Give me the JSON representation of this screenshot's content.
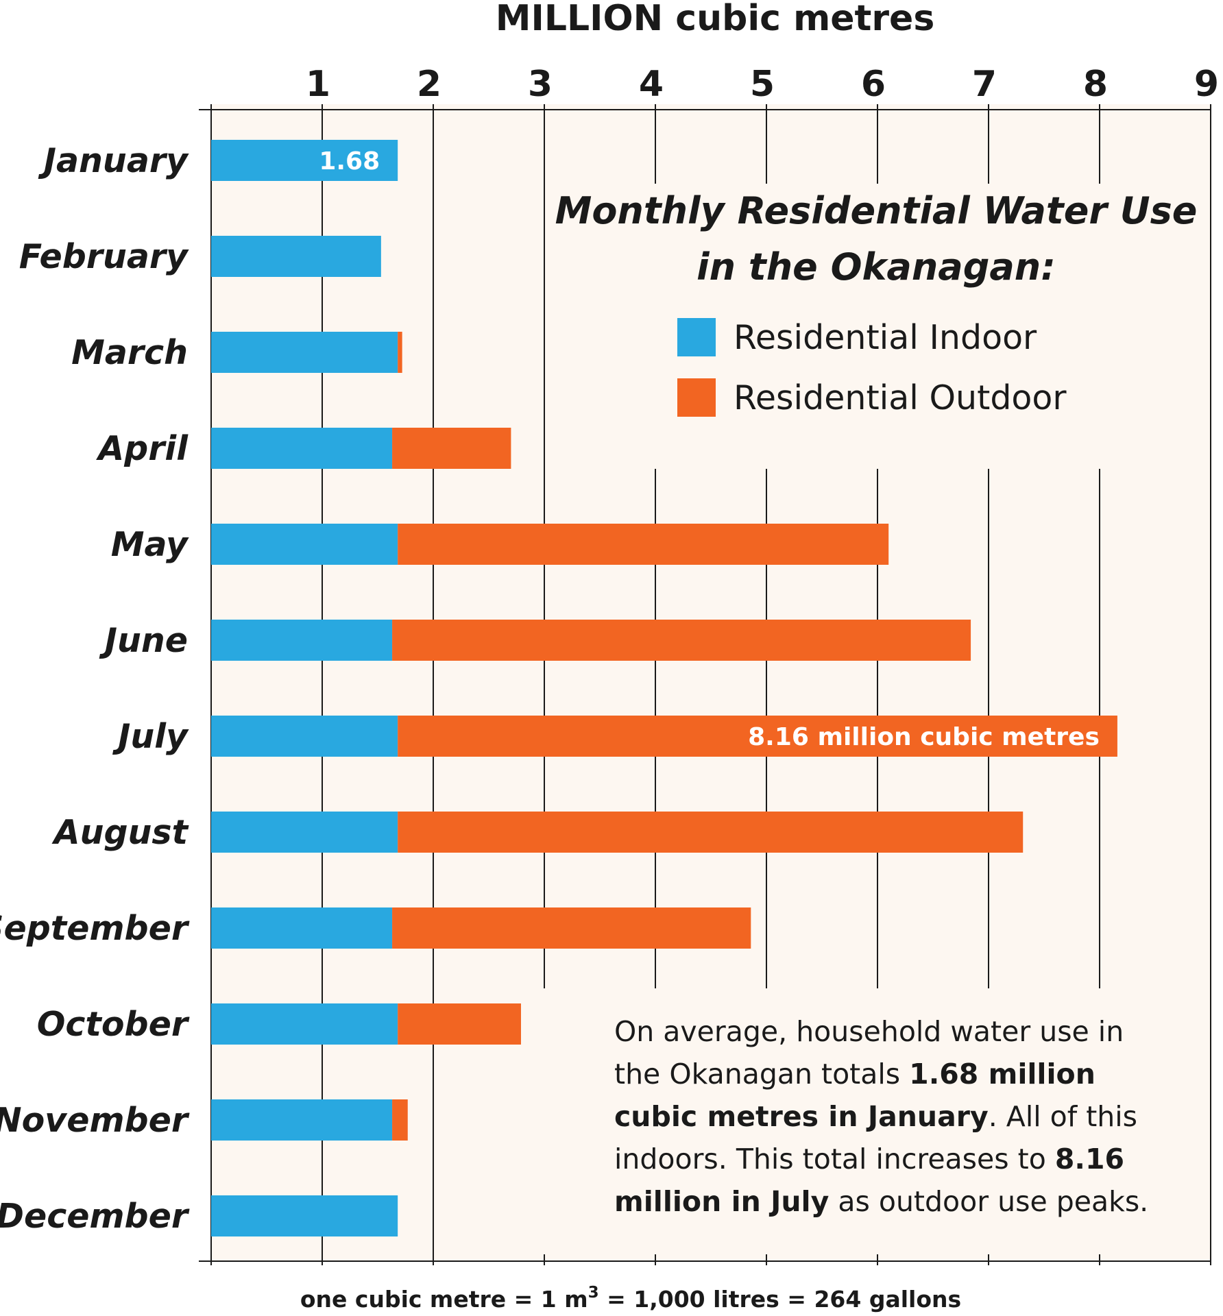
{
  "chart_data": {
    "type": "bar",
    "orientation": "horizontal",
    "stacked": true,
    "title": "Monthly Residential Water Use in the Okanagan:",
    "title_lines": [
      "Monthly Residential Water Use",
      "in the Okanagan:"
    ],
    "xlabel": "MILLION cubic metres",
    "xlim": [
      0,
      9
    ],
    "xticks": [
      1,
      2,
      3,
      4,
      5,
      6,
      7,
      8,
      9
    ],
    "grid": true,
    "legend_position": "top-right",
    "categories": [
      "January",
      "February",
      "March",
      "April",
      "May",
      "June",
      "July",
      "August",
      "September",
      "October",
      "November",
      "December"
    ],
    "series": [
      {
        "name": "Residential Indoor",
        "color": "#29a8e0",
        "values": [
          1.68,
          1.53,
          1.68,
          1.63,
          1.68,
          1.63,
          1.68,
          1.68,
          1.63,
          1.68,
          1.63,
          1.68
        ]
      },
      {
        "name": "Residential Outdoor",
        "color": "#f26522",
        "values": [
          0,
          0,
          0.04,
          1.07,
          4.42,
          5.21,
          6.48,
          5.63,
          3.23,
          1.11,
          0.14,
          0
        ]
      }
    ],
    "data_labels": [
      {
        "category": "January",
        "text": "1.68"
      },
      {
        "category": "July",
        "text": "8.16 million cubic metres"
      }
    ],
    "footnote": {
      "before": "one cubic metre = 1 m",
      "sup": "3",
      "after": " = 1,000 litres = 264 gallons"
    }
  },
  "note": {
    "lines": [
      [
        {
          "t": "On average, household water use in",
          "b": false
        }
      ],
      [
        {
          "t": "the Okanagan totals ",
          "b": false
        },
        {
          "t": "1.68 million",
          "b": true
        }
      ],
      [
        {
          "t": "cubic metres in January",
          "b": true
        },
        {
          "t": ". All of this",
          "b": false
        }
      ],
      [
        {
          "t": "indoors. This total increases to ",
          "b": false
        },
        {
          "t": "8.16",
          "b": true
        }
      ],
      [
        {
          "t": "million in July",
          "b": true
        },
        {
          "t": " as outdoor use peaks.",
          "b": false
        }
      ]
    ]
  },
  "colors": {
    "plot_background": "#fdf7f1",
    "gridline": "#1a1a1a",
    "indoor": "#29a8e0",
    "outdoor": "#f26522"
  }
}
